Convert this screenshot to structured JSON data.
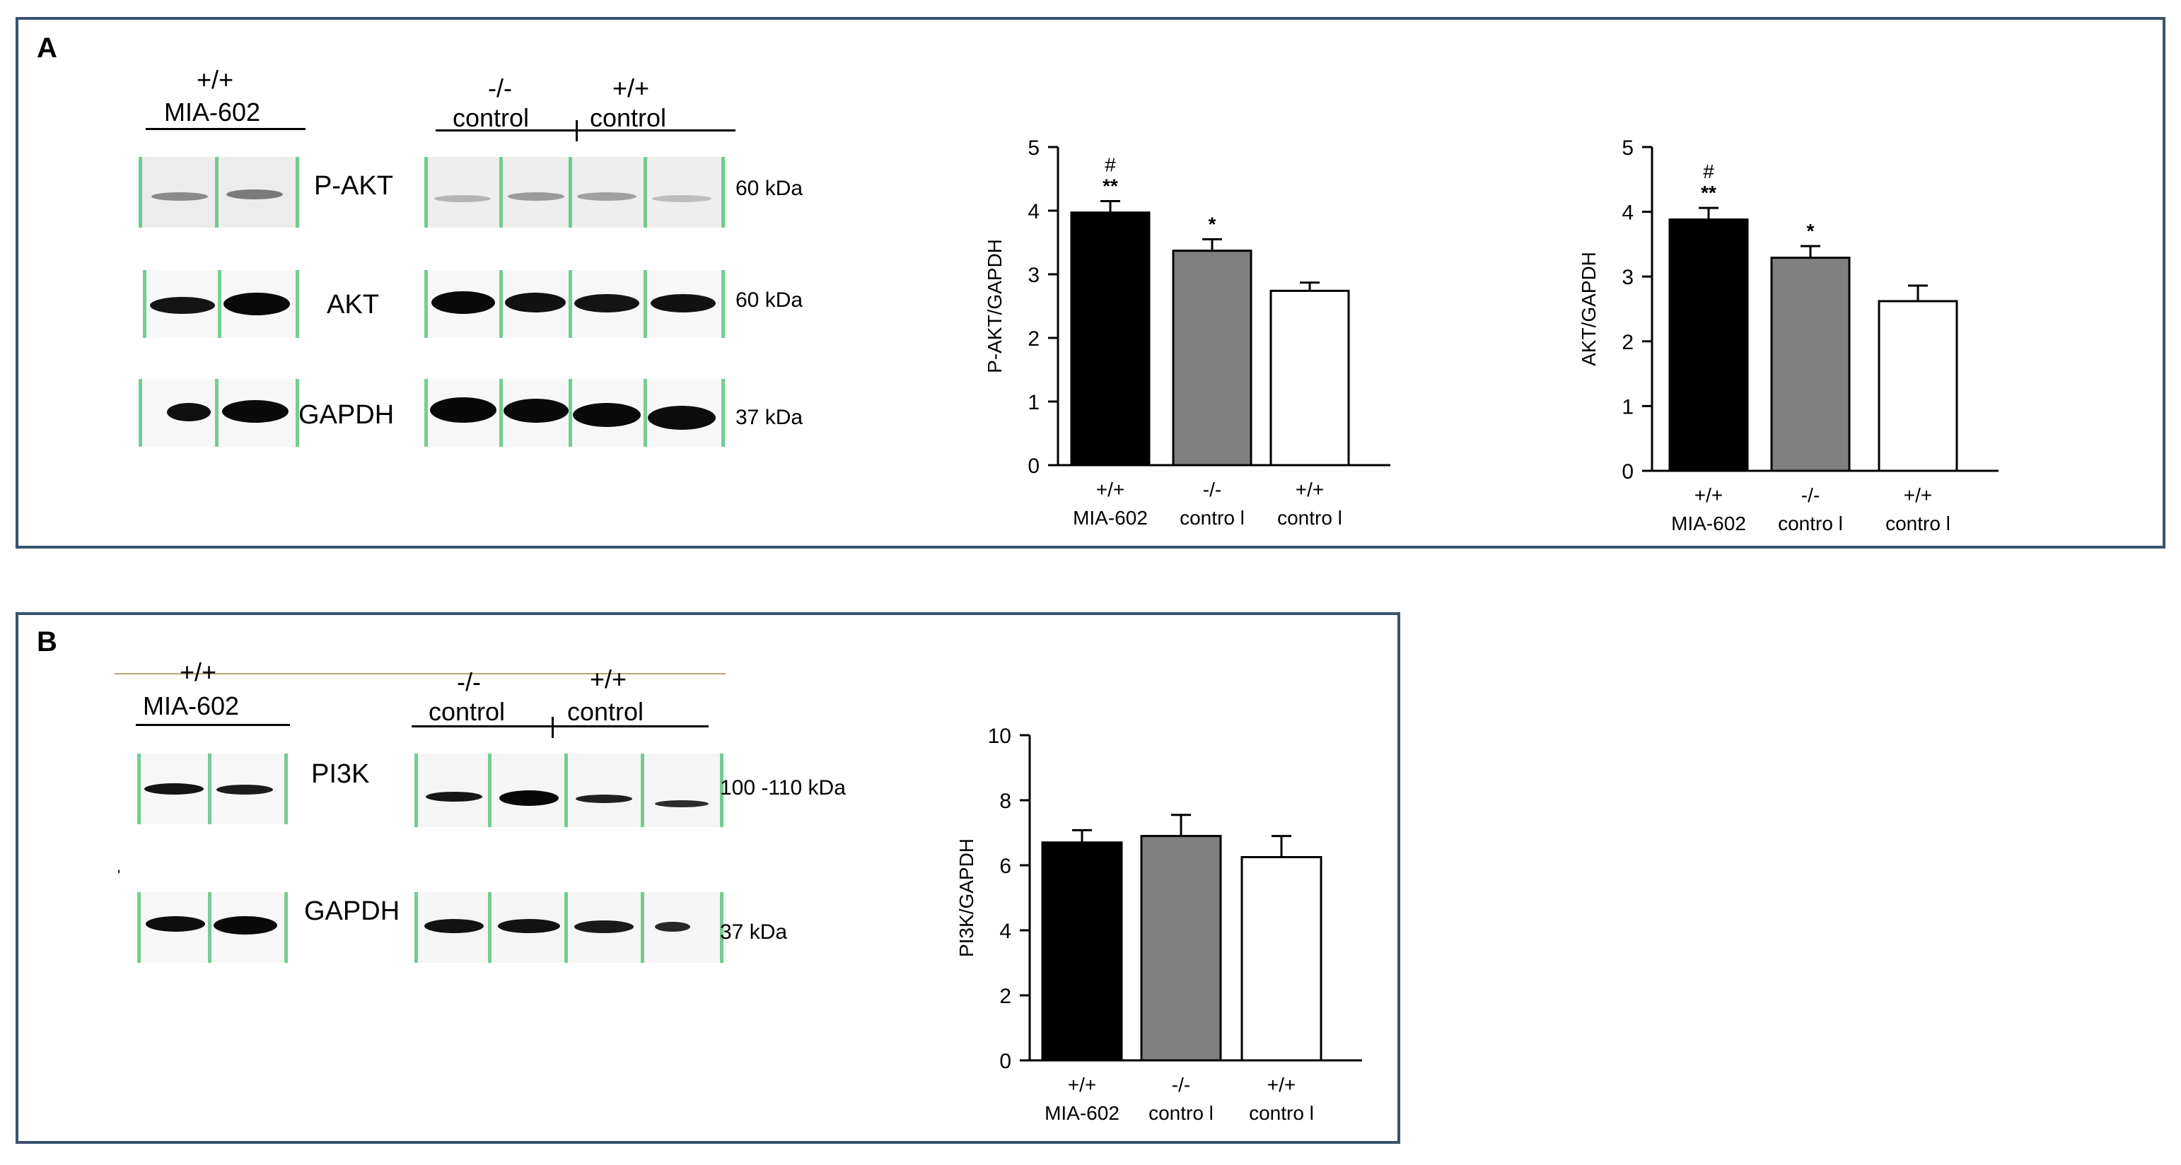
{
  "panels": {
    "a": {
      "letter": "A",
      "groups": {
        "mia": {
          "genotype": "+/+",
          "treatment": "MIA-602"
        },
        "ko": {
          "genotype": "-/-",
          "treatment": "control"
        },
        "wt": {
          "genotype": "+/+",
          "treatment": "control"
        }
      },
      "blots": [
        {
          "name": "P-AKT",
          "kda": "60 kDa"
        },
        {
          "name": "AKT",
          "kda": "60 kDa"
        },
        {
          "name": "GAPDH",
          "kda": "37 kDa"
        }
      ]
    },
    "b": {
      "letter": "B",
      "groups": {
        "mia": {
          "genotype": "+/+",
          "treatment": "MIA-602"
        },
        "ko": {
          "genotype": "-/-",
          "treatment": "control"
        },
        "wt": {
          "genotype": "+/+",
          "treatment": "control"
        }
      },
      "blots": [
        {
          "name": "PI3K",
          "kda": "100 -110  kDa"
        },
        {
          "name": "GAPDH",
          "kda": "37 kDa"
        }
      ]
    }
  },
  "colors": {
    "border": "#3b5270",
    "bar_mia": "#000000",
    "bar_ko": "#808080",
    "bar_wt": "#ffffff",
    "green_line": "#55c07a"
  },
  "chart_data": [
    {
      "type": "bar",
      "ylabel": "P-AKT/GAPDH",
      "ylim": [
        0,
        5
      ],
      "yticks": [
        0,
        1,
        2,
        3,
        4,
        5
      ],
      "categories": [
        [
          "+/+",
          "MIA-602"
        ],
        [
          "-/-",
          "contro l"
        ],
        [
          "+/+",
          "contro l"
        ]
      ],
      "values": [
        3.97,
        3.37,
        2.74
      ],
      "errors": [
        0.18,
        0.18,
        0.13
      ],
      "annotations": [
        [
          "#",
          "**"
        ],
        [
          "*"
        ],
        []
      ]
    },
    {
      "type": "bar",
      "ylabel": "AKT/GAPDH",
      "ylim": [
        0,
        5
      ],
      "yticks": [
        0,
        1,
        2,
        3,
        4,
        5
      ],
      "categories": [
        [
          "+/+",
          "MIA-602"
        ],
        [
          "-/-",
          "contro l"
        ],
        [
          "+/+",
          "contro l"
        ]
      ],
      "values": [
        3.88,
        3.29,
        2.62
      ],
      "errors": [
        0.18,
        0.18,
        0.24
      ],
      "annotations": [
        [
          "#",
          "**"
        ],
        [
          "*"
        ],
        []
      ]
    },
    {
      "type": "bar",
      "ylabel": "PI3K/GAPDH",
      "ylim": [
        0,
        10
      ],
      "yticks": [
        0,
        2,
        4,
        6,
        8,
        10
      ],
      "categories": [
        [
          "+/+",
          "MIA-602"
        ],
        [
          "-/-",
          "contro l"
        ],
        [
          "+/+",
          "contro l"
        ]
      ],
      "values": [
        6.7,
        6.9,
        6.25
      ],
      "errors": [
        0.38,
        0.65,
        0.65
      ],
      "annotations": [
        [],
        [],
        []
      ]
    }
  ]
}
